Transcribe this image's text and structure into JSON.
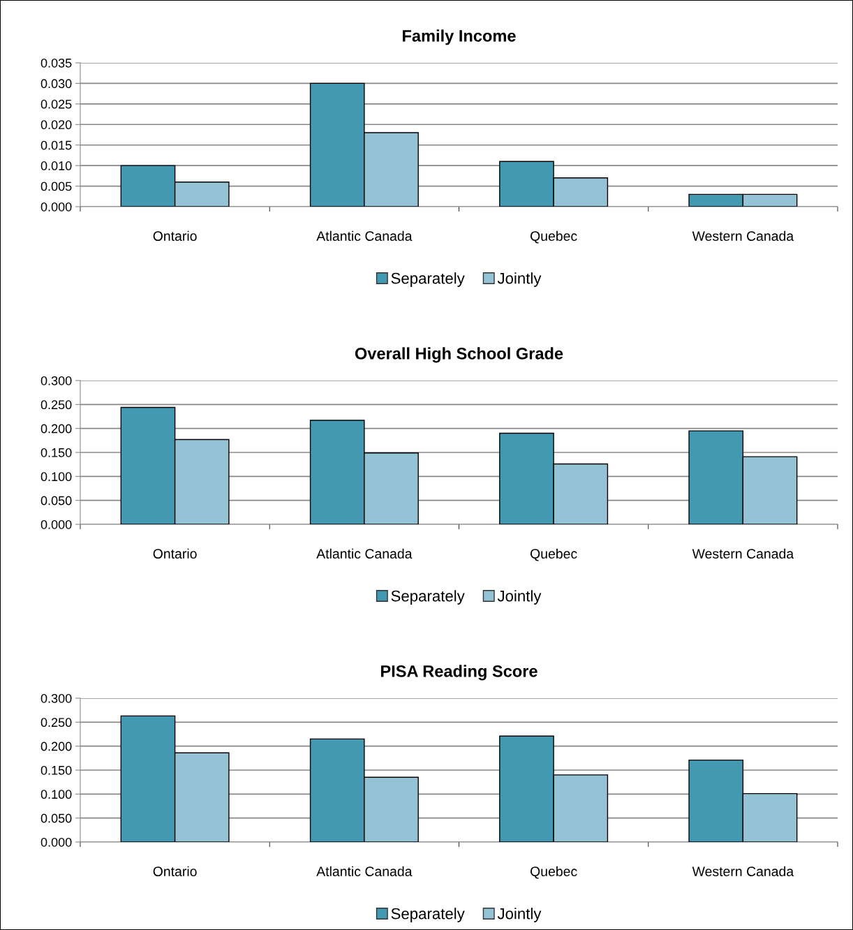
{
  "chart_data": [
    {
      "type": "bar",
      "title": "Family Income",
      "categories": [
        "Ontario",
        "Atlantic Canada",
        "Quebec",
        "Western Canada"
      ],
      "series": [
        {
          "name": "Separately",
          "color": "#4399b1",
          "values": [
            0.01,
            0.03,
            0.011,
            0.003
          ]
        },
        {
          "name": "Jointly",
          "color": "#93c3d5",
          "values": [
            0.006,
            0.018,
            0.007,
            0.003
          ]
        }
      ],
      "ylim": [
        0,
        0.035
      ],
      "yticks": [
        {
          "value": 0,
          "label": "0.000"
        },
        {
          "value": 0.005,
          "label": "0.005"
        },
        {
          "value": 0.01,
          "label": "0.010"
        },
        {
          "value": 0.015,
          "label": "0.015"
        },
        {
          "value": 0.02,
          "label": "0.020"
        },
        {
          "value": 0.025,
          "label": "0.025"
        },
        {
          "value": 0.03,
          "label": "0.030"
        },
        {
          "value": 0.035,
          "label": "0.035"
        }
      ],
      "grid": "y",
      "legend": "bottom"
    },
    {
      "type": "bar",
      "title": "Overall High School Grade",
      "categories": [
        "Ontario",
        "Atlantic Canada",
        "Quebec",
        "Western Canada"
      ],
      "series": [
        {
          "name": "Separately",
          "color": "#4399b1",
          "values": [
            0.244,
            0.217,
            0.19,
            0.195
          ]
        },
        {
          "name": "Jointly",
          "color": "#93c3d5",
          "values": [
            0.177,
            0.149,
            0.126,
            0.141
          ]
        }
      ],
      "ylim": [
        0,
        0.3
      ],
      "yticks": [
        {
          "value": 0,
          "label": "0.000"
        },
        {
          "value": 0.05,
          "label": "0.050"
        },
        {
          "value": 0.1,
          "label": "0.100"
        },
        {
          "value": 0.15,
          "label": "0.150"
        },
        {
          "value": 0.2,
          "label": "0.200"
        },
        {
          "value": 0.25,
          "label": "0.250"
        },
        {
          "value": 0.3,
          "label": "0.300"
        }
      ],
      "grid": "y",
      "legend": "bottom"
    },
    {
      "type": "bar",
      "title": "PISA Reading Score",
      "categories": [
        "Ontario",
        "Atlantic Canada",
        "Quebec",
        "Western Canada"
      ],
      "series": [
        {
          "name": "Separately",
          "color": "#4399b1",
          "values": [
            0.263,
            0.215,
            0.221,
            0.171
          ]
        },
        {
          "name": "Jointly",
          "color": "#93c3d5",
          "values": [
            0.186,
            0.135,
            0.14,
            0.101
          ]
        }
      ],
      "ylim": [
        0,
        0.3
      ],
      "yticks": [
        {
          "value": 0,
          "label": "0.000"
        },
        {
          "value": 0.05,
          "label": "0.050"
        },
        {
          "value": 0.1,
          "label": "0.100"
        },
        {
          "value": 0.15,
          "label": "0.150"
        },
        {
          "value": 0.2,
          "label": "0.200"
        },
        {
          "value": 0.25,
          "label": "0.250"
        },
        {
          "value": 0.3,
          "label": "0.300"
        }
      ],
      "grid": "y",
      "legend": "bottom"
    }
  ]
}
